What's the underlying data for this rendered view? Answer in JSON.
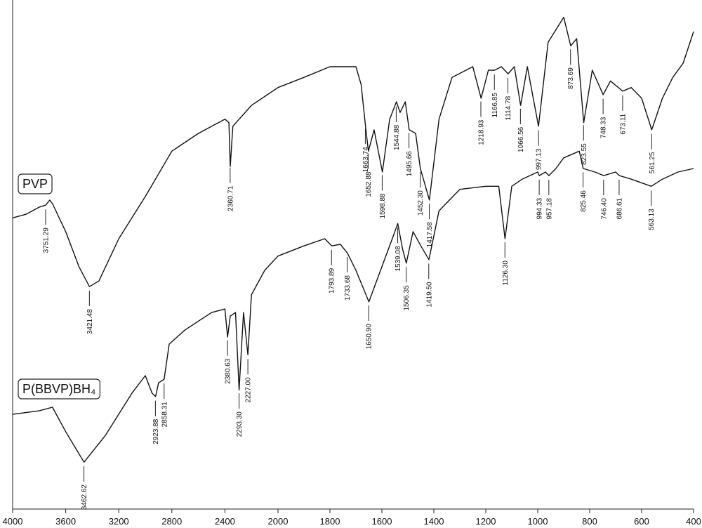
{
  "chart_data": {
    "type": "line",
    "xlim": [
      4000,
      400
    ],
    "x_break": 2000,
    "xticks": [
      4000,
      3600,
      3200,
      2800,
      2400,
      2000,
      1800,
      1600,
      1400,
      1200,
      1000,
      800,
      600,
      400
    ],
    "ylim": [
      0,
      100
    ],
    "series": [
      {
        "name": "PVP",
        "color": "#111111",
        "x": [
          4000,
          3900,
          3800,
          3751,
          3720,
          3700,
          3600,
          3500,
          3421,
          3350,
          3200,
          3000,
          2800,
          2600,
          2400,
          2370,
          2360,
          2340,
          2200,
          2000,
          1900,
          1800,
          1700,
          1680,
          1663,
          1652,
          1630,
          1598,
          1570,
          1544,
          1530,
          1510,
          1495,
          1470,
          1452,
          1417,
          1380,
          1330,
          1250,
          1218,
          1190,
          1166,
          1140,
          1114,
          1090,
          1066,
          1040,
          997,
          960,
          900,
          873,
          850,
          823,
          790,
          748,
          720,
          673,
          640,
          600,
          561,
          520,
          480,
          440,
          400
        ],
        "values": [
          57.2,
          57.9,
          59.3,
          59.7,
          60.7,
          60.0,
          54.5,
          47.6,
          43.7,
          44.8,
          53.1,
          61.4,
          70.3,
          73.8,
          76.6,
          75.9,
          67.3,
          75.2,
          79.3,
          82.8,
          84.8,
          86.9,
          86.9,
          83.4,
          75.2,
          70.3,
          74.5,
          66.2,
          76.6,
          80.0,
          77.9,
          80.0,
          74.5,
          73.8,
          66.9,
          60.7,
          76.6,
          84.8,
          86.9,
          80.7,
          86.2,
          86.2,
          86.9,
          85.5,
          86.9,
          79.3,
          86.9,
          75.2,
          91.7,
          96.6,
          91.0,
          92.4,
          75.9,
          86.2,
          81.4,
          84.1,
          82.1,
          82.8,
          80.7,
          74.5,
          80.7,
          84.8,
          87.6,
          93.8
        ],
        "peaks": [
          3751.29,
          3421.48,
          2360.71,
          1663.74,
          1652.88,
          1598.88,
          1544.88,
          1495.66,
          {
            "value": 1452.3,
            "label": "1452.30"
          },
          1417.58,
          1218.93,
          1166.85,
          1114.78,
          1066.56,
          997.13,
          873.69,
          823.55,
          748.33,
          673.11,
          561.25
        ]
      },
      {
        "name": "P(BBVP)BH₄",
        "color": "#111111",
        "x": [
          4000,
          3800,
          3700,
          3600,
          3462,
          3300,
          3100,
          3000,
          2950,
          2923,
          2900,
          2858,
          2820,
          2700,
          2500,
          2400,
          2380,
          2360,
          2320,
          2293,
          2260,
          2227,
          2200,
          2100,
          2000,
          1900,
          1820,
          1793,
          1760,
          1733,
          1700,
          1650,
          1600,
          1560,
          1539,
          1520,
          1506,
          1480,
          1450,
          1419,
          1380,
          1300,
          1200,
          1150,
          1126,
          1100,
          1060,
          1000,
          994,
          970,
          957,
          930,
          900,
          840,
          825,
          780,
          746,
          700,
          686,
          640,
          563,
          520,
          460,
          400
        ],
        "values": [
          18.6,
          19.3,
          20.0,
          15.2,
          9.2,
          14.5,
          22.8,
          26.2,
          22.8,
          22.1,
          24.8,
          25.5,
          32.4,
          35.2,
          38.6,
          39.3,
          33.8,
          37.9,
          38.6,
          23.4,
          38.6,
          30.3,
          42.1,
          46.9,
          49.7,
          51.7,
          53.1,
          51.7,
          52.0,
          50.3,
          46.9,
          40.7,
          47.6,
          53.1,
          56.1,
          51.0,
          48.3,
          54.5,
          51.7,
          49.0,
          58.6,
          62.8,
          63.4,
          63.4,
          53.1,
          63.4,
          64.8,
          66.2,
          65.5,
          66.2,
          65.5,
          66.9,
          69.0,
          70.3,
          66.9,
          66.2,
          65.5,
          66.2,
          65.5,
          64.8,
          63.4,
          64.8,
          66.2,
          66.9
        ],
        "peaks": [
          3462.62,
          2923.88,
          2858.31,
          2380.63,
          {
            "value": 2293.3,
            "label": "2293.30"
          },
          {
            "value": 2227,
            "label": "2227.00"
          },
          1793.89,
          1733.68,
          {
            "value": 1650.9,
            "label": "1650.90"
          },
          1539.08,
          1506.35,
          {
            "value": 1419.5,
            "label": "1419.50"
          },
          {
            "value": 1126.3,
            "label": "1126.30"
          },
          994.33,
          957.18,
          825.46,
          {
            "value": 746.4,
            "label": "746.40"
          },
          686.61,
          563.13
        ]
      }
    ]
  }
}
